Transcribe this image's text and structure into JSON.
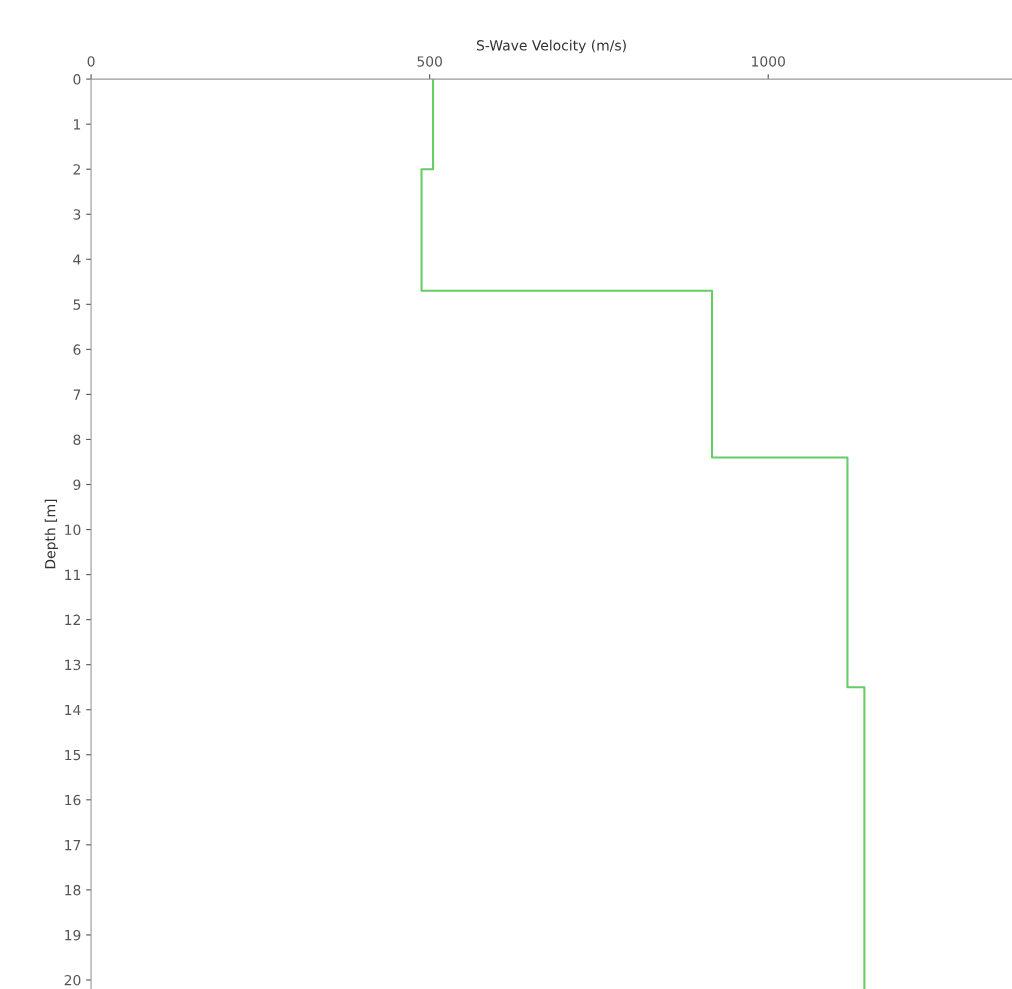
{
  "chart_data": {
    "type": "line",
    "xlabel": "S-Wave Velocity (m/s)",
    "ylabel": "Depth [m]",
    "xlim": [
      0,
      1360
    ],
    "xticks": [
      0,
      500,
      1000
    ],
    "ylim": [
      20.2,
      0
    ],
    "yticks": [
      0,
      1,
      2,
      3,
      4,
      5,
      6,
      7,
      8,
      9,
      10,
      11,
      12,
      13,
      14,
      15,
      16,
      17,
      18,
      19,
      20
    ],
    "series": [
      {
        "color": "#66cc66",
        "x": [
          505,
          505,
          488,
          488,
          917,
          917,
          1117,
          1117,
          1142,
          1142
        ],
        "values": [
          0,
          2,
          2,
          4.7,
          4.7,
          8.4,
          8.4,
          13.5,
          13.5,
          20.2
        ]
      }
    ],
    "marker": "none",
    "line_style": "solid"
  }
}
